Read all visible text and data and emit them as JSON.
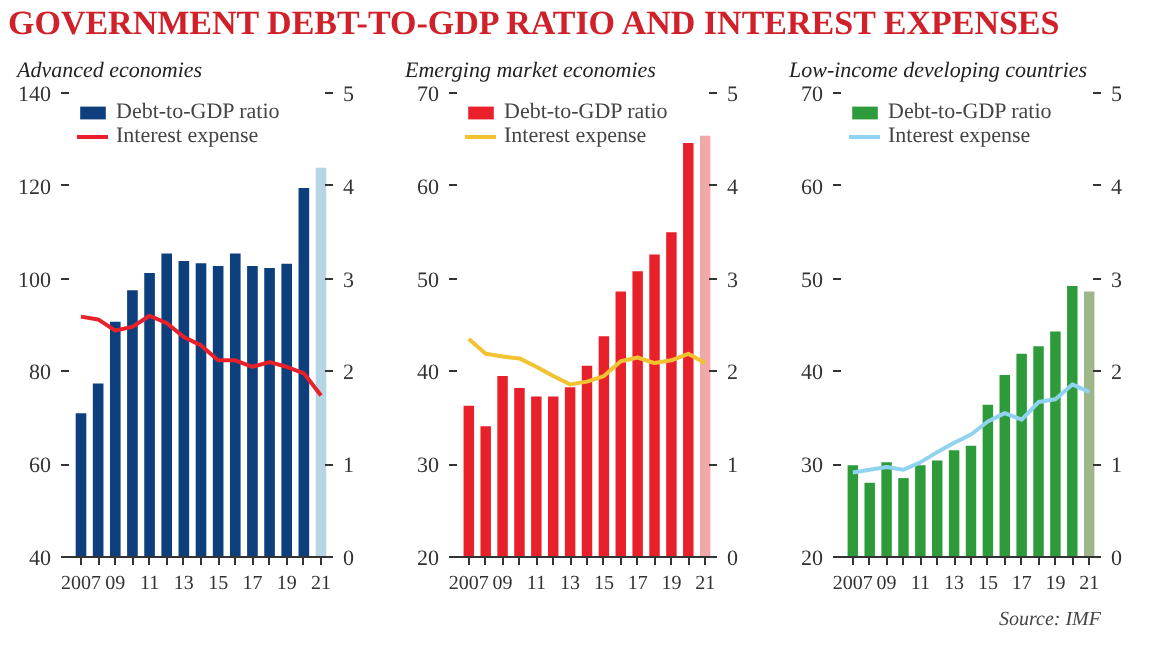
{
  "chart_data": [
    {
      "type": "bar",
      "title": "GOVERNMENT DEBT-TO-GDP RATIO AND INTEREST EXPENSES",
      "subtitle": "Advanced economies",
      "x": [
        2007,
        2008,
        2009,
        2010,
        2011,
        2012,
        2013,
        2014,
        2015,
        2016,
        2017,
        2018,
        2019,
        2020,
        2021
      ],
      "xlim": [
        2006.3,
        2021.7
      ],
      "xticks": [
        {
          "value": 2007,
          "label": "2007"
        },
        {
          "value": 2008,
          "label": null
        },
        {
          "value": 2009,
          "label": "09"
        },
        {
          "value": 2010,
          "label": null
        },
        {
          "value": 2011,
          "label": "11"
        },
        {
          "value": 2012,
          "label": null
        },
        {
          "value": 2013,
          "label": "13"
        },
        {
          "value": 2014,
          "label": null
        },
        {
          "value": 2015,
          "label": "15"
        },
        {
          "value": 2016,
          "label": null
        },
        {
          "value": 2017,
          "label": "17"
        },
        {
          "value": 2018,
          "label": null
        },
        {
          "value": 2019,
          "label": "19"
        },
        {
          "value": 2020,
          "label": null
        },
        {
          "value": 2021,
          "label": "21"
        }
      ],
      "ylim": [
        40,
        140
      ],
      "yticks": [
        40,
        60,
        80,
        100,
        120,
        140
      ],
      "y2lim": [
        0,
        5
      ],
      "y2ticks": [
        0,
        1,
        2,
        3,
        4,
        5
      ],
      "grid": false,
      "legend": "top left",
      "series": [
        {
          "name": "Debt-to-GDP ratio",
          "colors": [
            "#0d3f7c",
            "#0d3f7c",
            "#0d3f7c",
            "#0d3f7c",
            "#0d3f7c",
            "#0d3f7c",
            "#0d3f7c",
            "#0d3f7c",
            "#0d3f7c",
            "#0d3f7c",
            "#0d3f7c",
            "#0d3f7c",
            "#0d3f7c",
            "#0d3f7c",
            "#b5d4e4"
          ],
          "values": [
            71,
            77.4,
            90.7,
            97.5,
            101.2,
            105.4,
            103.8,
            103.3,
            102.7,
            105.4,
            102.7,
            102.3,
            103.2,
            119.5,
            123.9
          ]
        },
        {
          "name": "Interest expense",
          "type": "line",
          "axis": "y2",
          "color": "#e8202a",
          "values": [
            2.59,
            2.56,
            2.44,
            2.48,
            2.6,
            2.52,
            2.37,
            2.28,
            2.12,
            2.12,
            2.05,
            2.1,
            2.05,
            1.98,
            1.74
          ]
        }
      ]
    },
    {
      "type": "bar",
      "subtitle": "Emerging market economies",
      "x": [
        2007,
        2008,
        2009,
        2010,
        2011,
        2012,
        2013,
        2014,
        2015,
        2016,
        2017,
        2018,
        2019,
        2020,
        2021
      ],
      "xlim": [
        2006.3,
        2021.7
      ],
      "xticks": [
        {
          "value": 2007,
          "label": "2007"
        },
        {
          "value": 2008,
          "label": null
        },
        {
          "value": 2009,
          "label": "09"
        },
        {
          "value": 2010,
          "label": null
        },
        {
          "value": 2011,
          "label": "11"
        },
        {
          "value": 2012,
          "label": null
        },
        {
          "value": 2013,
          "label": "13"
        },
        {
          "value": 2014,
          "label": null
        },
        {
          "value": 2015,
          "label": "15"
        },
        {
          "value": 2016,
          "label": null
        },
        {
          "value": 2017,
          "label": "17"
        },
        {
          "value": 2018,
          "label": null
        },
        {
          "value": 2019,
          "label": "19"
        },
        {
          "value": 2020,
          "label": null
        },
        {
          "value": 2021,
          "label": "21"
        }
      ],
      "ylim": [
        20,
        70
      ],
      "yticks": [
        20,
        30,
        40,
        50,
        60,
        70
      ],
      "y2lim": [
        0,
        5
      ],
      "y2ticks": [
        0,
        1,
        2,
        3,
        4,
        5
      ],
      "grid": false,
      "legend": "top left",
      "series": [
        {
          "name": "Debt-to-GDP ratio",
          "colors": [
            "#e8202a",
            "#e8202a",
            "#e8202a",
            "#e8202a",
            "#e8202a",
            "#e8202a",
            "#e8202a",
            "#e8202a",
            "#e8202a",
            "#e8202a",
            "#e8202a",
            "#e8202a",
            "#e8202a",
            "#e8202a",
            "#f0a8a8"
          ],
          "values": [
            36.3,
            34.1,
            39.5,
            38.2,
            37.3,
            37.3,
            38.3,
            40.6,
            43.8,
            48.6,
            50.8,
            52.6,
            55.0,
            64.6,
            65.4
          ]
        },
        {
          "name": "Interest expense",
          "type": "line",
          "axis": "y2",
          "color": "#f2c230",
          "values": [
            2.35,
            2.19,
            2.16,
            2.14,
            2.05,
            1.95,
            1.86,
            1.89,
            1.95,
            2.11,
            2.15,
            2.09,
            2.12,
            2.19,
            2.09
          ]
        }
      ]
    },
    {
      "type": "bar",
      "subtitle": "Low-income developing countries",
      "annotations": [
        "Source: IMF"
      ],
      "x": [
        2007,
        2008,
        2009,
        2010,
        2011,
        2012,
        2013,
        2014,
        2015,
        2016,
        2017,
        2018,
        2019,
        2020,
        2021
      ],
      "xlim": [
        2006.3,
        2021.7
      ],
      "xticks": [
        {
          "value": 2007,
          "label": "2007"
        },
        {
          "value": 2008,
          "label": null
        },
        {
          "value": 2009,
          "label": "09"
        },
        {
          "value": 2010,
          "label": null
        },
        {
          "value": 2011,
          "label": "11"
        },
        {
          "value": 2012,
          "label": null
        },
        {
          "value": 2013,
          "label": "13"
        },
        {
          "value": 2014,
          "label": null
        },
        {
          "value": 2015,
          "label": "15"
        },
        {
          "value": 2016,
          "label": null
        },
        {
          "value": 2017,
          "label": "17"
        },
        {
          "value": 2018,
          "label": null
        },
        {
          "value": 2019,
          "label": "19"
        },
        {
          "value": 2020,
          "label": null
        },
        {
          "value": 2021,
          "label": "21"
        }
      ],
      "ylim": [
        20,
        70
      ],
      "yticks": [
        20,
        30,
        40,
        50,
        60,
        70
      ],
      "y2lim": [
        0,
        5
      ],
      "y2ticks": [
        0,
        1,
        2,
        3,
        4,
        5
      ],
      "grid": false,
      "legend": "top left",
      "series": [
        {
          "name": "Debt-to-GDP ratio",
          "colors": [
            "#2e9b3a",
            "#2e9b3a",
            "#2e9b3a",
            "#2e9b3a",
            "#2e9b3a",
            "#2e9b3a",
            "#2e9b3a",
            "#2e9b3a",
            "#2e9b3a",
            "#2e9b3a",
            "#2e9b3a",
            "#2e9b3a",
            "#2e9b3a",
            "#2e9b3a",
            "#9db68a"
          ],
          "values": [
            29.9,
            28.0,
            30.2,
            28.5,
            29.9,
            30.4,
            31.5,
            32.0,
            36.4,
            39.6,
            41.9,
            42.7,
            44.3,
            49.2,
            48.6
          ]
        },
        {
          "name": "Interest expense",
          "type": "line",
          "axis": "y2",
          "color": "#8fd3f0",
          "values": [
            0.91,
            0.94,
            0.97,
            0.94,
            1.02,
            1.13,
            1.23,
            1.32,
            1.46,
            1.55,
            1.48,
            1.67,
            1.7,
            1.86,
            1.78
          ]
        }
      ]
    }
  ]
}
